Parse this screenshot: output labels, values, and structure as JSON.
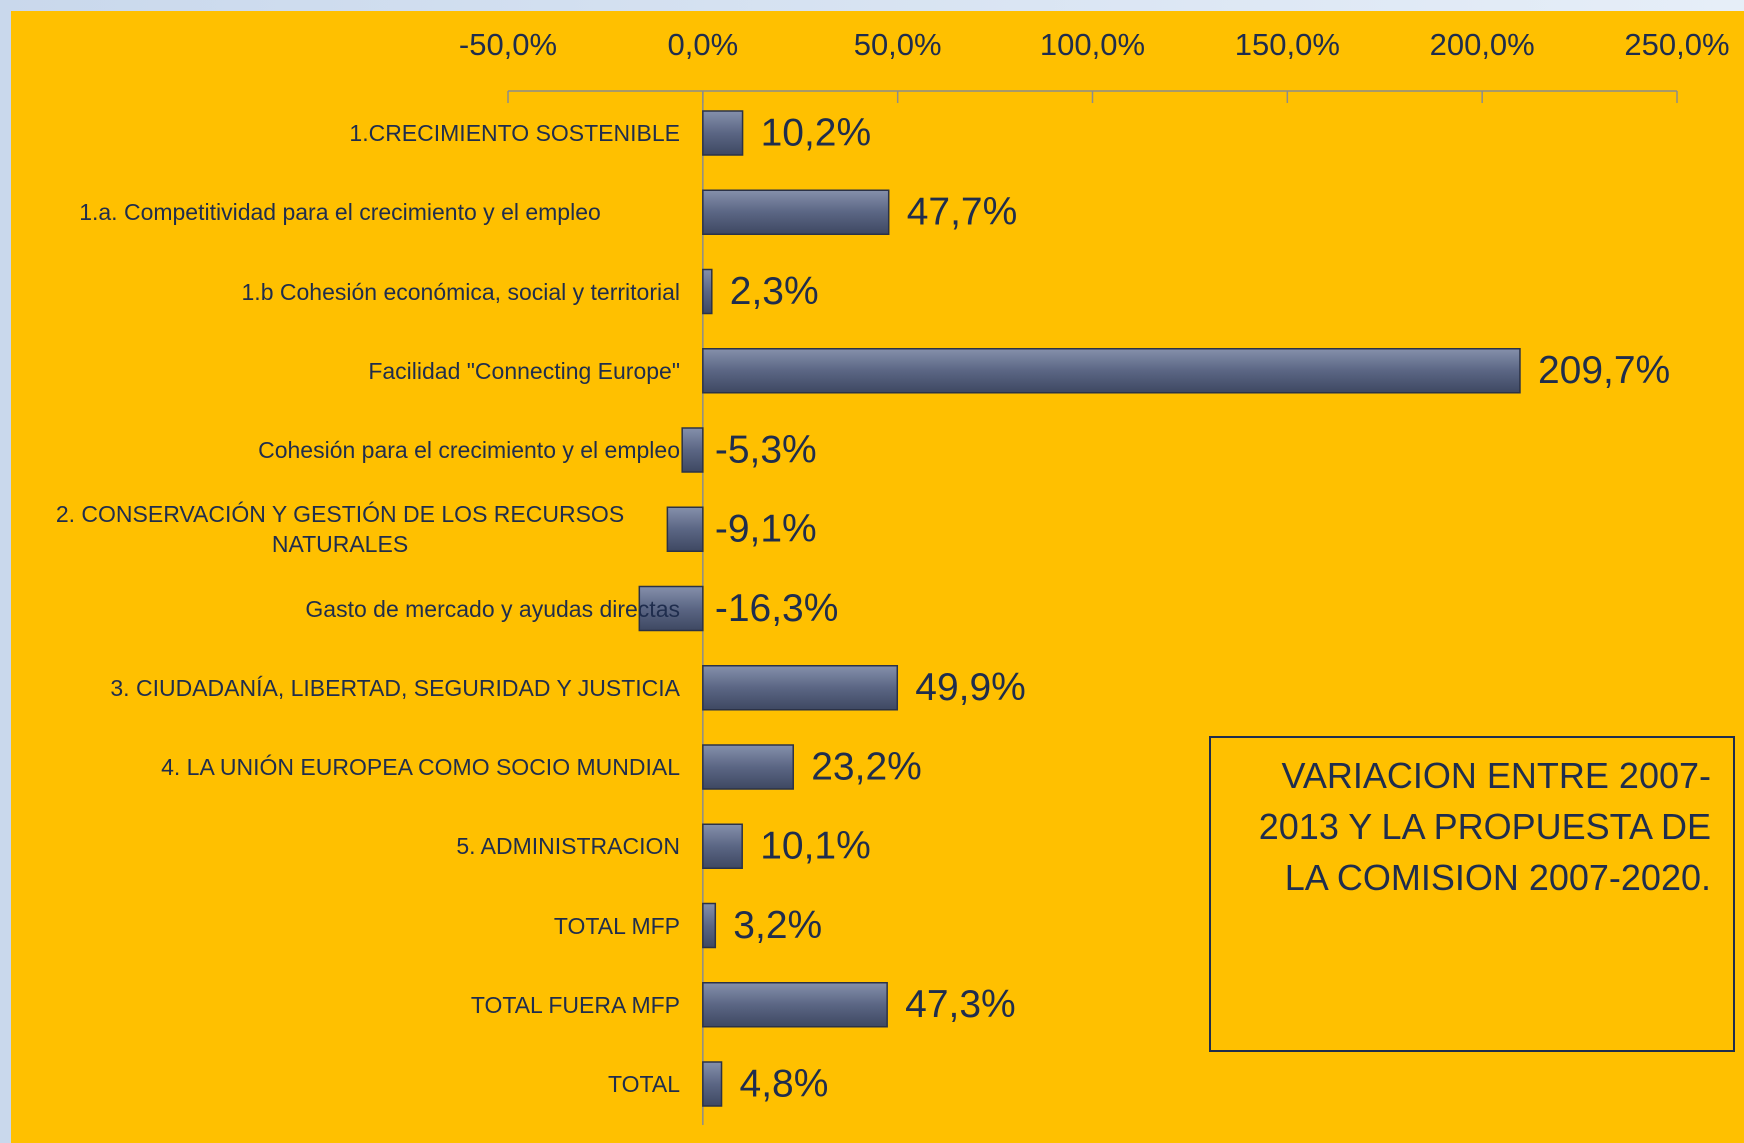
{
  "chart_data": {
    "type": "barh",
    "categories": [
      "1.CRECIMIENTO SOSTENIBLE",
      "1.a. Competitividad para el crecimiento y el empleo",
      "1.b Cohesión económica, social y territorial",
      "Facilidad \"Connecting Europe\"",
      "Cohesión para el crecimiento y el empleo",
      "2. CONSERVACIÓN Y GESTIÓN DE LOS RECURSOS NATURALES",
      "Gasto de mercado y ayudas directas",
      "3. CIUDADANÍA, LIBERTAD, SEGURIDAD Y JUSTICIA",
      "4. LA UNIÓN EUROPEA COMO SOCIO MUNDIAL",
      "5. ADMINISTRACION",
      "TOTAL MFP",
      "TOTAL FUERA MFP",
      "TOTAL"
    ],
    "values": [
      10.2,
      47.7,
      2.3,
      209.7,
      -5.3,
      -9.1,
      -16.3,
      49.9,
      23.2,
      10.1,
      3.2,
      47.3,
      4.8
    ],
    "value_labels": [
      "10,2%",
      "47,7%",
      "2,3%",
      "209,7%",
      "-5,3%",
      "-9,1%",
      "-16,3%",
      "49,9%",
      "23,2%",
      "10,1%",
      "3,2%",
      "47,3%",
      "4,8%"
    ],
    "color": "#5b6684",
    "xlim": [
      -50,
      250
    ],
    "xticks": [
      {
        "value": -50,
        "label": "-50,0%"
      },
      {
        "value": 0,
        "label": "0,0%"
      },
      {
        "value": 50,
        "label": "50,0%"
      },
      {
        "value": 100,
        "label": "100,0%"
      },
      {
        "value": 150,
        "label": "150,0%"
      },
      {
        "value": 200,
        "label": "200,0%"
      },
      {
        "value": 250,
        "label": "250,0%"
      }
    ],
    "annotation": "VARIACION ENTRE 2007-2013 Y LA PROPUESTA DE LA COMISION 2007-2020."
  }
}
